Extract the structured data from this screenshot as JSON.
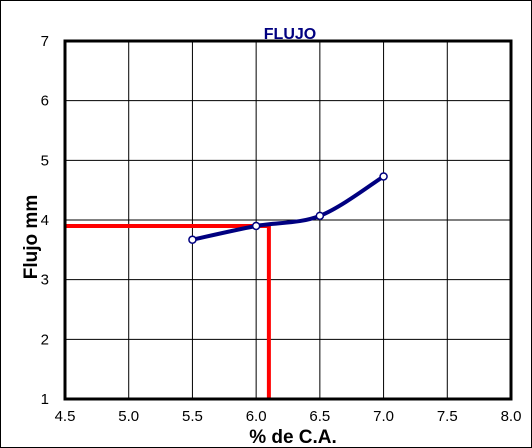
{
  "chart_data": {
    "type": "line",
    "title": "FLUJO",
    "xlabel": "% de C.A.",
    "ylabel": "Flujo mm",
    "xlim": [
      4.5,
      8.0
    ],
    "ylim": [
      1,
      7
    ],
    "x_ticks": [
      "4.5",
      "5.0",
      "5.5",
      "6.0",
      "6.5",
      "7.0",
      "7.5",
      "8.0"
    ],
    "y_ticks": [
      "1",
      "2",
      "3",
      "4",
      "5",
      "6",
      "7"
    ],
    "grid": true,
    "series": [
      {
        "x": [
          5.5,
          6.0,
          6.5,
          7.0
        ],
        "y": [
          3.67,
          3.9,
          4.07,
          4.73
        ],
        "color": "#000080"
      }
    ],
    "reference": {
      "x": 6.1,
      "y": 3.9,
      "color": "#ff0000"
    }
  }
}
